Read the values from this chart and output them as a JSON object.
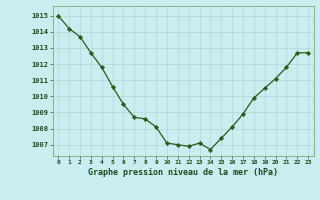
{
  "x": [
    0,
    1,
    2,
    3,
    4,
    5,
    6,
    7,
    8,
    9,
    10,
    11,
    12,
    13,
    14,
    15,
    16,
    17,
    18,
    19,
    20,
    21,
    22,
    23
  ],
  "y": [
    1015.0,
    1014.2,
    1013.7,
    1012.7,
    1011.8,
    1010.6,
    1009.5,
    1008.7,
    1008.6,
    1008.1,
    1007.1,
    1007.0,
    1006.9,
    1007.1,
    1006.7,
    1007.4,
    1008.1,
    1008.9,
    1009.9,
    1010.5,
    1011.1,
    1011.8,
    1012.7,
    1012.7
  ],
  "line_color": "#2d5a1b",
  "marker_color": "#2d5a1b",
  "bg_color": "#c8eef0",
  "grid_color": "#b0d8d8",
  "xlabel": "Graphe pression niveau de la mer (hPa)",
  "xlabel_color": "#1a4a1a",
  "ylabel_ticks": [
    1007,
    1008,
    1009,
    1010,
    1011,
    1012,
    1013,
    1014,
    1015
  ],
  "ylim": [
    1006.3,
    1015.6
  ],
  "xlim": [
    -0.5,
    23.5
  ],
  "tick_color": "#2d5a1b",
  "tick_label_color": "#1a4a1a",
  "border_color": "#7aaa7a"
}
